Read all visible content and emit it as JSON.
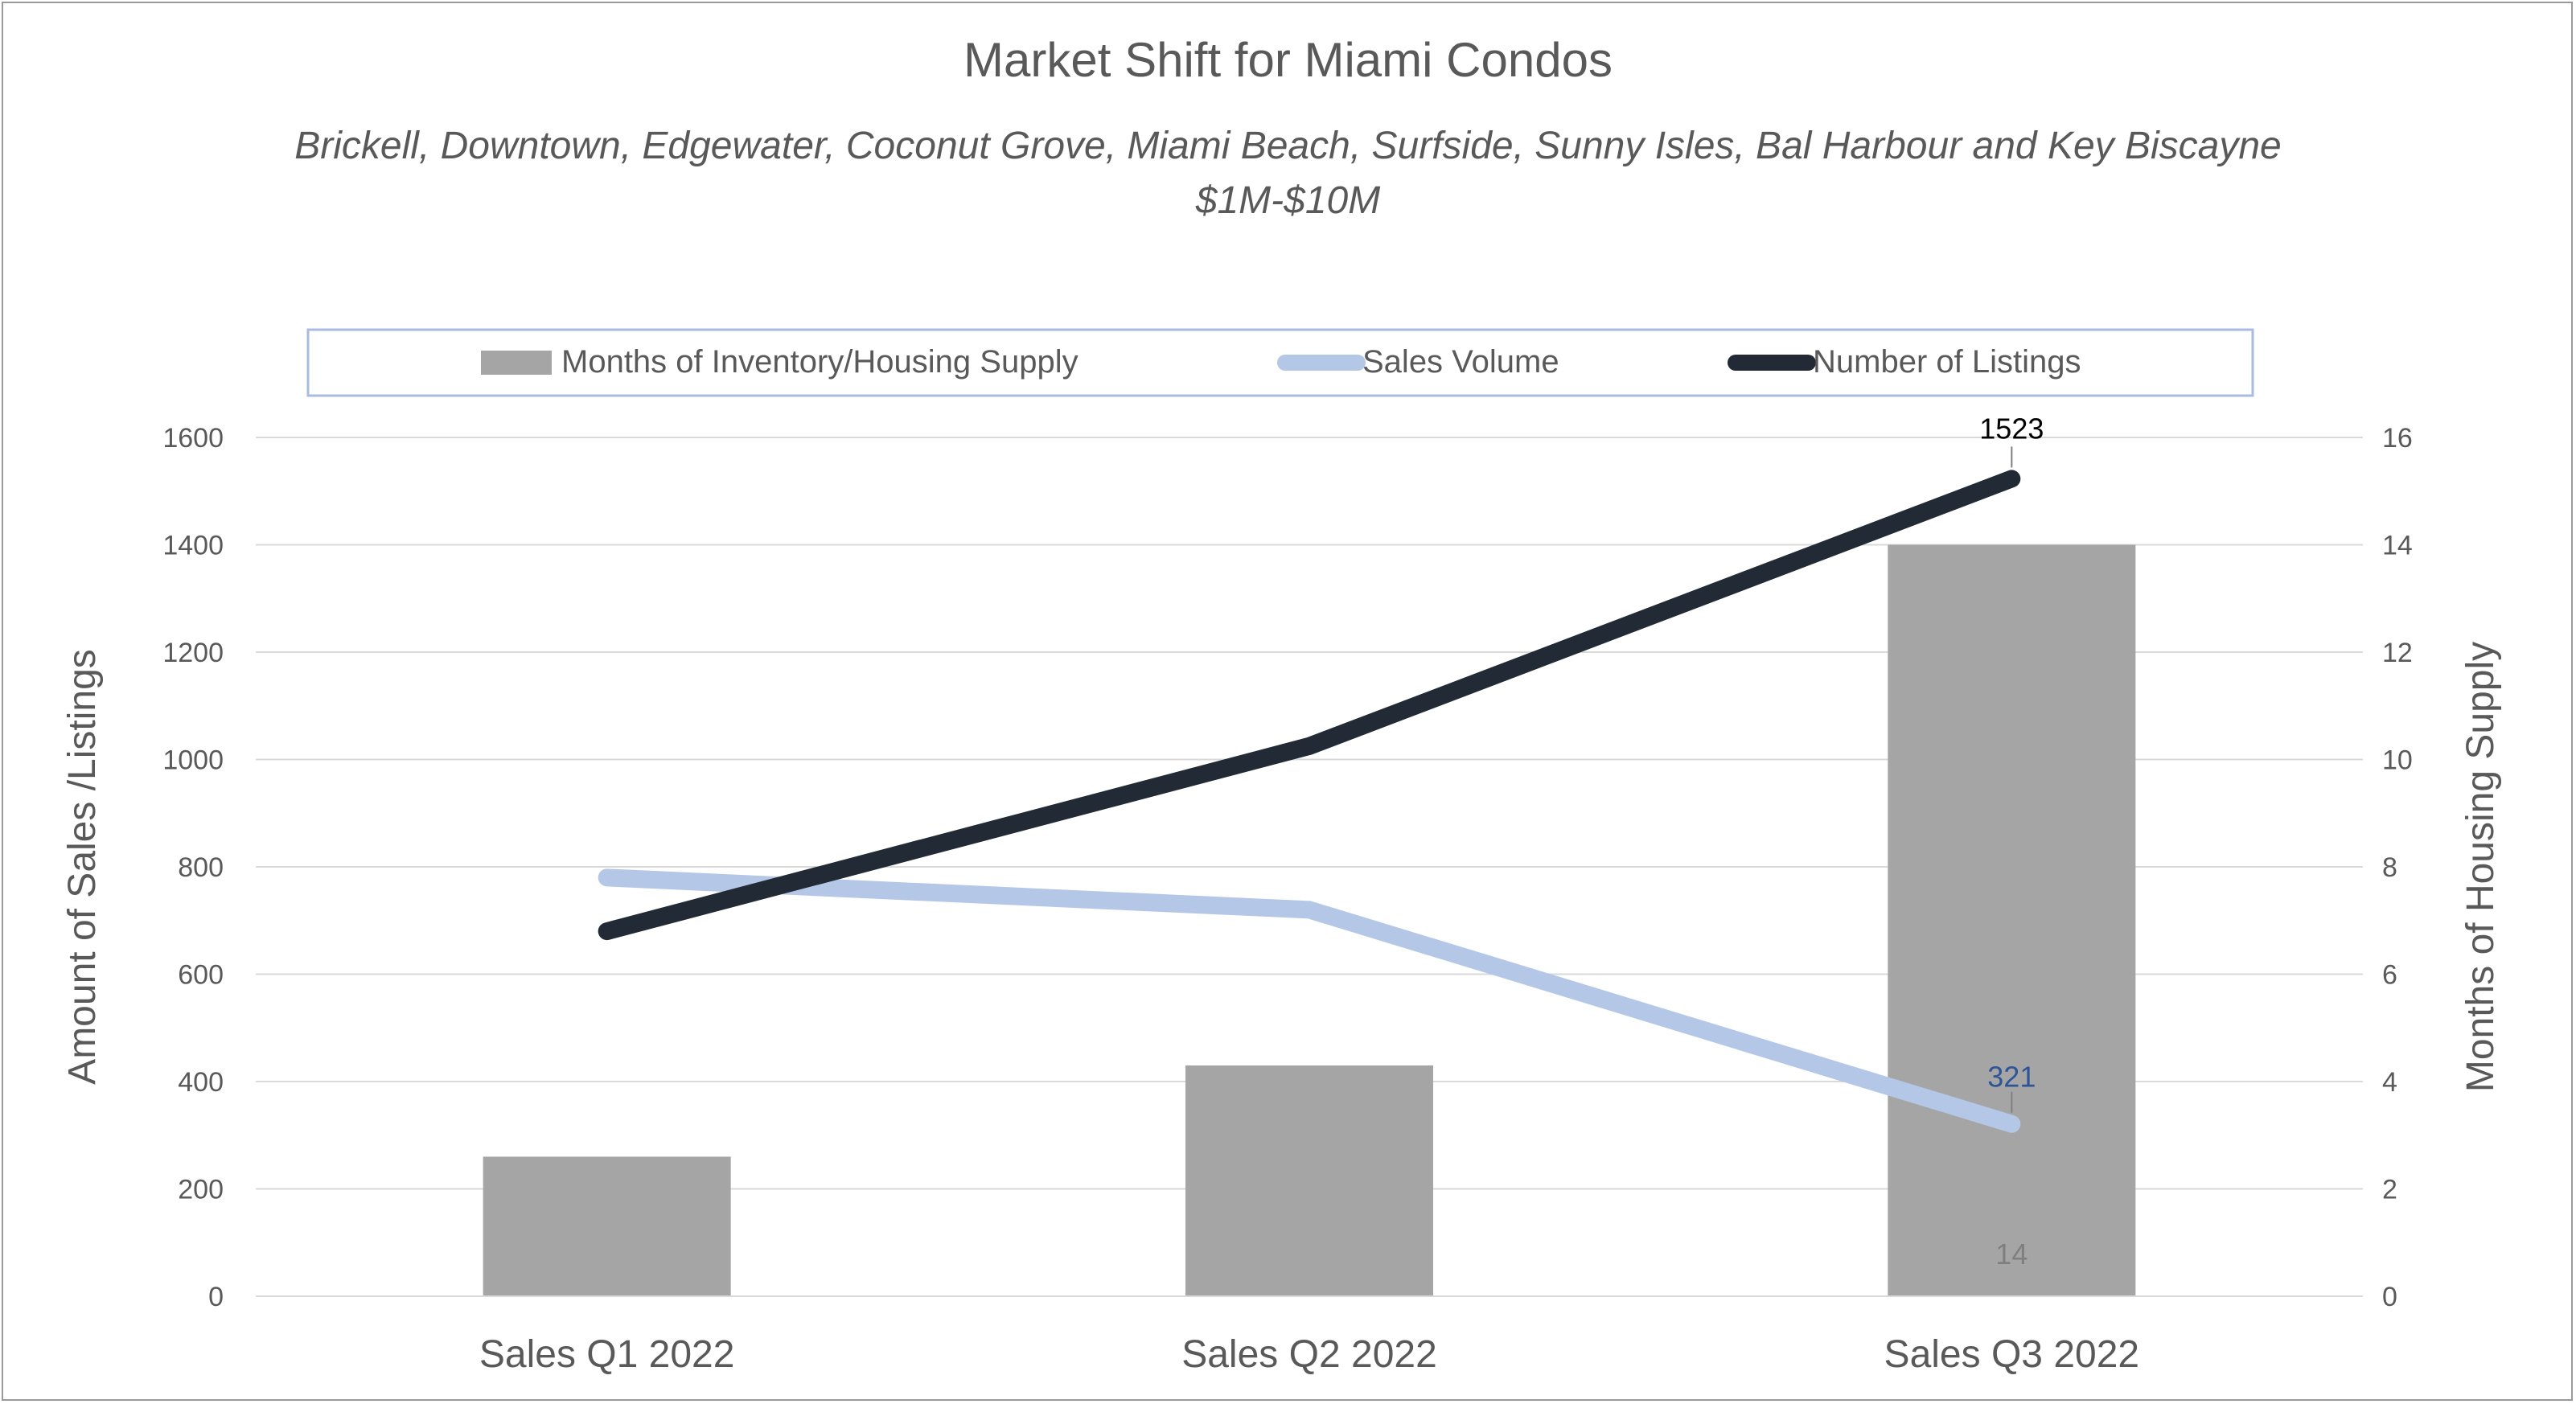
{
  "chart_data": {
    "type": "bar+line",
    "title": "Market Shift for Miami Condos",
    "subtitle_lines": [
      "Brickell, Downtown, Edgewater, Coconut Grove, Miami Beach, Surfside, Sunny Isles, Bal Harbour and Key Biscayne",
      "$1M-$10M"
    ],
    "categories": [
      "Sales Q1 2022",
      "Sales Q2 2022",
      "Sales Q3 2022"
    ],
    "y_left": {
      "label": "Amount of Sales /Listings",
      "range": [
        0,
        1600
      ],
      "ticks": [
        "0",
        "200",
        "400",
        "600",
        "800",
        "1000",
        "1200",
        "1400",
        "1600"
      ]
    },
    "y_right": {
      "label": "Months of Housing Supply",
      "range": [
        0,
        16
      ],
      "ticks": [
        "0",
        "2",
        "4",
        "6",
        "8",
        "10",
        "12",
        "14",
        "16"
      ]
    },
    "grid": true,
    "legend_position": "top",
    "series": [
      {
        "name": "Months of Inventory/Housing Supply",
        "type": "bar",
        "axis": "right",
        "color": "#a5a5a5",
        "values": [
          2.6,
          4.3,
          14
        ],
        "data_labels": [
          "",
          "",
          "14"
        ],
        "label_color": "#7f7f7f"
      },
      {
        "name": "Sales Volume",
        "type": "line",
        "axis": "left",
        "color": "#b4c7e7",
        "values": [
          780,
          720,
          321
        ],
        "data_labels": [
          "",
          "",
          "321"
        ],
        "label_color": "#2f5597"
      },
      {
        "name": "Number of Listings",
        "type": "line",
        "axis": "left",
        "color": "#222a35",
        "values": [
          680,
          1025,
          1523
        ],
        "data_labels": [
          "",
          "",
          "1523"
        ],
        "label_color": "#000000"
      }
    ]
  }
}
